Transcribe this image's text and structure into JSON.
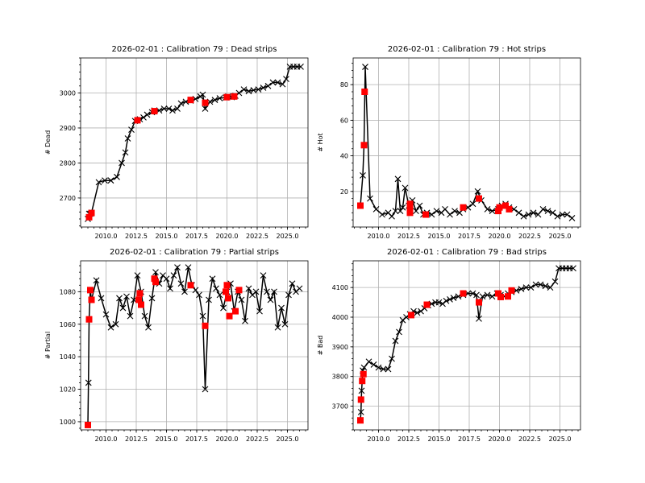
{
  "chart_data": [
    {
      "type": "line",
      "title": "2026-02-01 : Calibration 79 : Dead strips",
      "xlabel": "",
      "ylabel": "# Dead",
      "xlim": [
        2007.9,
        2026.7
      ],
      "ylim": [
        2617,
        3100
      ],
      "xticks": [
        2010.0,
        2012.5,
        2015.0,
        2017.5,
        2020.0,
        2022.5,
        2025.0
      ],
      "xtick_labels": [
        "2010.0",
        "2012.5",
        "2015.0",
        "2017.5",
        "2020.0",
        "2022.5",
        "2025.0"
      ],
      "yticks": [
        2700,
        2800,
        2900,
        3000
      ],
      "ytick_labels": [
        "2700",
        "2800",
        "2900",
        "3000"
      ],
      "grid": true,
      "x": [
        2008.5,
        2008.6,
        2008.7,
        2008.8,
        2009.4,
        2009.9,
        2010.4,
        2010.9,
        2011.3,
        2011.6,
        2011.8,
        2012.1,
        2012.4,
        2012.8,
        2013.1,
        2013.4,
        2013.8,
        2014.0,
        2014.4,
        2014.8,
        2015.2,
        2015.5,
        2015.9,
        2016.2,
        2016.6,
        2017.0,
        2017.4,
        2017.8,
        2018.0,
        2018.2,
        2018.6,
        2019.0,
        2019.4,
        2019.9,
        2020.1,
        2020.4,
        2020.7,
        2021.0,
        2021.4,
        2021.8,
        2022.2,
        2022.6,
        2023.0,
        2023.4,
        2023.8,
        2024.2,
        2024.6,
        2024.9,
        2025.2,
        2025.5,
        2025.8,
        2026.1
      ],
      "y": [
        2640,
        2655,
        2655,
        2658,
        2745,
        2750,
        2750,
        2760,
        2800,
        2830,
        2870,
        2895,
        2920,
        2925,
        2930,
        2938,
        2945,
        2950,
        2950,
        2955,
        2955,
        2950,
        2955,
        2970,
        2975,
        2978,
        2983,
        2990,
        2995,
        2955,
        2975,
        2980,
        2985,
        2987,
        2990,
        2988,
        2992,
        3000,
        3010,
        3005,
        3008,
        3010,
        3015,
        3020,
        3030,
        3030,
        3025,
        3040,
        3075,
        3075,
        3075,
        3075
      ],
      "highlight_x": [
        2008.6,
        2008.8,
        2012.6,
        2014.0,
        2017.0,
        2018.2,
        2020.0,
        2020.6
      ],
      "highlight_y": [
        2645,
        2657,
        2922,
        2948,
        2980,
        2972,
        2988,
        2990
      ]
    },
    {
      "type": "line",
      "title": "2026-02-01 : Calibration 79 : Hot strips",
      "xlabel": "",
      "ylabel": "# Hot",
      "xlim": [
        2007.9,
        2026.7
      ],
      "ylim": [
        0,
        95
      ],
      "xticks": [
        2010.0,
        2012.5,
        2015.0,
        2017.5,
        2020.0,
        2022.5,
        2025.0
      ],
      "xtick_labels": [
        "2010.0",
        "2012.5",
        "2015.0",
        "2017.5",
        "2020.0",
        "2022.5",
        "2025.0"
      ],
      "yticks": [
        20,
        40,
        60,
        80
      ],
      "ytick_labels": [
        "20",
        "40",
        "60",
        "80"
      ],
      "grid": true,
      "x": [
        2008.5,
        2008.7,
        2008.8,
        2008.9,
        2009.3,
        2009.8,
        2010.3,
        2010.8,
        2011.1,
        2011.4,
        2011.6,
        2011.8,
        2012.0,
        2012.2,
        2012.5,
        2012.8,
        2013.1,
        2013.4,
        2013.7,
        2014.0,
        2014.4,
        2014.8,
        2015.2,
        2015.5,
        2015.9,
        2016.3,
        2016.7,
        2017.0,
        2017.4,
        2017.8,
        2018.2,
        2018.5,
        2019.0,
        2019.4,
        2019.9,
        2020.2,
        2020.5,
        2020.8,
        2021.2,
        2021.6,
        2022.0,
        2022.4,
        2022.8,
        2023.2,
        2023.6,
        2024.0,
        2024.4,
        2024.8,
        2025.2,
        2025.6,
        2026.0
      ],
      "y": [
        12,
        29,
        46,
        90,
        16,
        10,
        7,
        8,
        6,
        9,
        27,
        9,
        11,
        22,
        12,
        15,
        9,
        12,
        7,
        8,
        7,
        9,
        8,
        10,
        7,
        9,
        8,
        10,
        11,
        13,
        20,
        15,
        10,
        9,
        10,
        12,
        13,
        11,
        10,
        8,
        6,
        7,
        8,
        7,
        10,
        9,
        8,
        6,
        7,
        7,
        5
      ],
      "highlight_x": [
        2008.5,
        2008.8,
        2008.85,
        2012.6,
        2012.6,
        2012.6,
        2013.9,
        2017.0,
        2018.3,
        2019.9,
        2020.0,
        2020.5,
        2020.8
      ],
      "highlight_y": [
        12,
        46,
        76,
        13,
        10,
        8,
        7,
        11,
        16,
        9,
        11,
        12,
        10
      ]
    },
    {
      "type": "line",
      "title": "2026-02-01 : Calibration 79 : Partial strips",
      "xlabel": "",
      "ylabel": "# Partial",
      "xlim": [
        2007.9,
        2026.7
      ],
      "ylim": [
        995,
        1099
      ],
      "xticks": [
        2010.0,
        2012.5,
        2015.0,
        2017.5,
        2020.0,
        2022.5,
        2025.0
      ],
      "xtick_labels": [
        "2010.0",
        "2012.5",
        "2015.0",
        "2017.5",
        "2020.0",
        "2022.5",
        "2025.0"
      ],
      "yticks": [
        1000,
        1020,
        1040,
        1060,
        1080
      ],
      "ytick_labels": [
        "1000",
        "1020",
        "1040",
        "1060",
        "1080"
      ],
      "grid": true,
      "x": [
        2008.5,
        2008.55,
        2008.6,
        2008.7,
        2008.8,
        2009.2,
        2009.6,
        2010.0,
        2010.4,
        2010.8,
        2011.1,
        2011.4,
        2011.7,
        2012.0,
        2012.3,
        2012.6,
        2012.9,
        2013.2,
        2013.5,
        2013.8,
        2014.1,
        2014.4,
        2014.7,
        2015.0,
        2015.3,
        2015.6,
        2015.9,
        2016.2,
        2016.5,
        2016.8,
        2017.1,
        2017.4,
        2017.7,
        2018.0,
        2018.2,
        2018.5,
        2018.8,
        2019.1,
        2019.4,
        2019.7,
        2020.0,
        2020.3,
        2020.6,
        2020.9,
        2021.2,
        2021.5,
        2021.8,
        2022.1,
        2022.4,
        2022.7,
        2023.0,
        2023.3,
        2023.6,
        2023.9,
        2024.2,
        2024.5,
        2024.8,
        2025.1,
        2025.4,
        2025.7,
        2026.0
      ],
      "y": [
        998,
        1024,
        1063,
        1081,
        1075,
        1087,
        1076,
        1066,
        1058,
        1060,
        1076,
        1070,
        1077,
        1065,
        1075,
        1090,
        1080,
        1065,
        1058,
        1076,
        1092,
        1085,
        1090,
        1088,
        1082,
        1090,
        1095,
        1085,
        1080,
        1095,
        1084,
        1081,
        1078,
        1065,
        1020,
        1075,
        1088,
        1082,
        1078,
        1070,
        1080,
        1085,
        1068,
        1080,
        1075,
        1062,
        1082,
        1078,
        1080,
        1068,
        1090,
        1080,
        1075,
        1080,
        1058,
        1070,
        1060,
        1078,
        1085,
        1080,
        1082
      ],
      "highlight_x": [
        2008.5,
        2008.6,
        2008.7,
        2008.8,
        2012.7,
        2012.8,
        2012.9,
        2014.0,
        2014.1,
        2017.0,
        2018.2,
        2019.9,
        2020.0,
        2020.1,
        2020.2,
        2020.7,
        2021.0
      ],
      "highlight_y": [
        998,
        1063,
        1081,
        1075,
        1075,
        1079,
        1072,
        1088,
        1086,
        1084,
        1059,
        1080,
        1084,
        1076,
        1065,
        1068,
        1081
      ]
    },
    {
      "type": "line",
      "title": "2026-02-01 : Calibration 79 : Bad strips",
      "xlabel": "",
      "ylabel": "# Bad",
      "xlim": [
        2007.9,
        2026.7
      ],
      "ylim": [
        3620,
        4190
      ],
      "xticks": [
        2010.0,
        2012.5,
        2015.0,
        2017.5,
        2020.0,
        2022.5,
        2025.0
      ],
      "xtick_labels": [
        "2010.0",
        "2012.5",
        "2015.0",
        "2017.5",
        "2020.0",
        "2022.5",
        "2025.0"
      ],
      "yticks": [
        3700,
        3800,
        3900,
        4000,
        4100
      ],
      "ytick_labels": [
        "3700",
        "3800",
        "3900",
        "4000",
        "4100"
      ],
      "grid": true,
      "x": [
        2008.5,
        2008.55,
        2008.6,
        2008.7,
        2008.8,
        2009.2,
        2009.6,
        2010.0,
        2010.4,
        2010.8,
        2011.1,
        2011.4,
        2011.7,
        2012.0,
        2012.3,
        2012.6,
        2012.9,
        2013.2,
        2013.5,
        2013.8,
        2014.1,
        2014.4,
        2014.7,
        2015.0,
        2015.3,
        2015.6,
        2015.9,
        2016.2,
        2016.6,
        2017.0,
        2017.4,
        2017.8,
        2018.1,
        2018.3,
        2018.6,
        2019.0,
        2019.4,
        2019.8,
        2020.1,
        2020.4,
        2020.7,
        2021.0,
        2021.4,
        2021.8,
        2022.2,
        2022.6,
        2023.0,
        2023.4,
        2023.8,
        2024.2,
        2024.6,
        2024.9,
        2025.2,
        2025.5,
        2025.8,
        2026.1
      ],
      "y": [
        3652,
        3680,
        3752,
        3820,
        3830,
        3850,
        3840,
        3830,
        3825,
        3825,
        3860,
        3920,
        3950,
        3990,
        4000,
        4010,
        4020,
        4015,
        4020,
        4030,
        4040,
        4045,
        4050,
        4050,
        4045,
        4055,
        4060,
        4065,
        4070,
        4075,
        4080,
        4080,
        4075,
        3995,
        4070,
        4075,
        4070,
        4080,
        4075,
        4070,
        4080,
        4085,
        4090,
        4095,
        4100,
        4100,
        4110,
        4110,
        4105,
        4100,
        4120,
        4165,
        4165,
        4165,
        4165,
        4165
      ],
      "highlight_x": [
        2008.5,
        2008.55,
        2008.65,
        2008.75,
        2012.7,
        2014.0,
        2017.0,
        2018.3,
        2019.9,
        2020.1,
        2020.7,
        2021.0
      ],
      "highlight_y": [
        3652,
        3722,
        3785,
        3808,
        4007,
        4042,
        4080,
        4050,
        4080,
        4068,
        4070,
        4090
      ]
    }
  ]
}
